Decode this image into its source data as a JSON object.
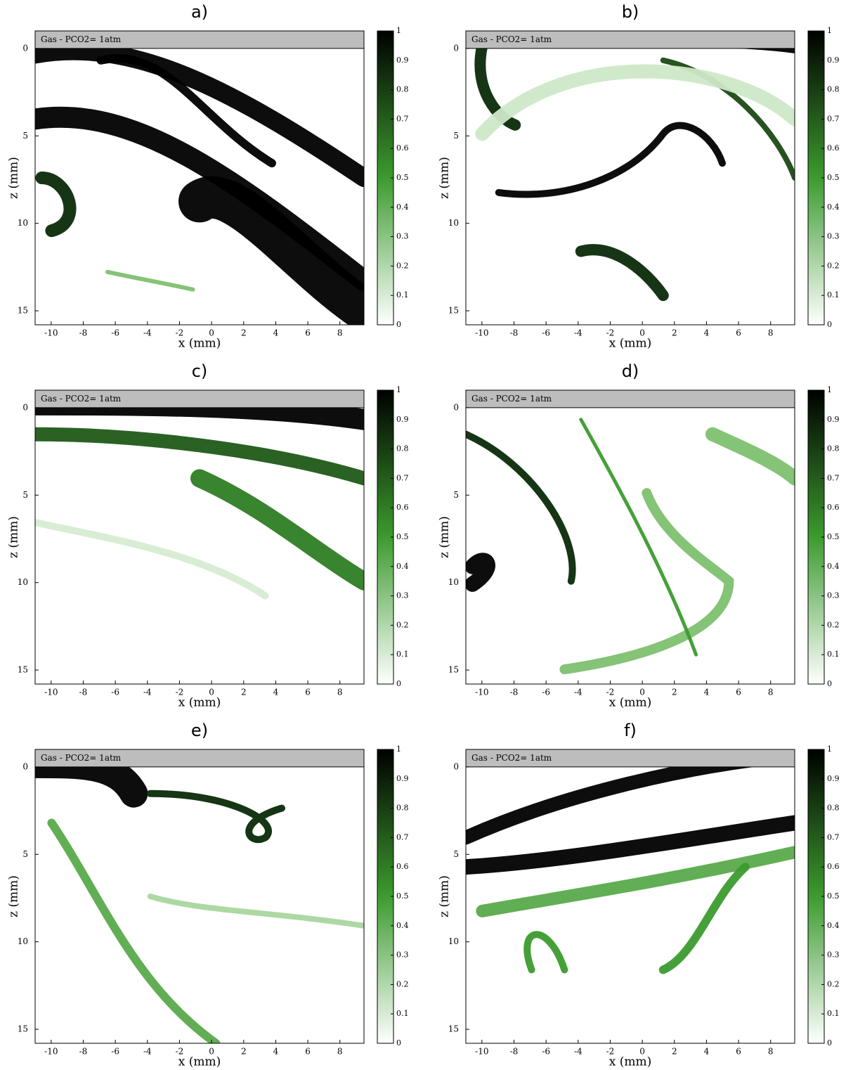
{
  "chart_data": [
    {
      "type": "heatmap",
      "title": "a)",
      "annotation": "Gas - PCO2= 1atm",
      "x_label": "x (mm)",
      "y_label": "z (mm)",
      "xlim": [
        -11,
        9.5
      ],
      "ylim": [
        -1,
        15.8
      ],
      "xticks": [
        -10,
        -8,
        -6,
        -4,
        -2,
        0,
        2,
        4,
        6,
        8
      ],
      "yticks": [
        0,
        5,
        10,
        15
      ],
      "colormap": [
        "#ffffff",
        "#3c9b2e",
        "#000000"
      ],
      "clim": [
        0,
        1
      ],
      "cticks": [
        0,
        0.1,
        0.2,
        0.3,
        0.4,
        0.5,
        0.6,
        0.7,
        0.8,
        0.9,
        1
      ]
    },
    {
      "type": "heatmap",
      "title": "b)",
      "annotation": "Gas - PCO2= 1atm",
      "x_label": "x (mm)",
      "y_label": "z (mm)",
      "xlim": [
        -11,
        9.5
      ],
      "ylim": [
        -1,
        15.8
      ],
      "xticks": [
        -10,
        -8,
        -6,
        -4,
        -2,
        0,
        2,
        4,
        6,
        8
      ],
      "yticks": [
        0,
        5,
        10,
        15
      ],
      "colormap": [
        "#ffffff",
        "#3c9b2e",
        "#000000"
      ],
      "clim": [
        0,
        1
      ],
      "cticks": [
        0,
        0.1,
        0.2,
        0.3,
        0.4,
        0.5,
        0.6,
        0.7,
        0.8,
        0.9,
        1
      ]
    },
    {
      "type": "heatmap",
      "title": "c)",
      "annotation": "Gas - PCO2= 1atm",
      "x_label": "x (mm)",
      "y_label": "z (mm)",
      "xlim": [
        -11,
        9.5
      ],
      "ylim": [
        -1,
        15.8
      ],
      "xticks": [
        -10,
        -8,
        -6,
        -4,
        -2,
        0,
        2,
        4,
        6,
        8
      ],
      "yticks": [
        0,
        5,
        10,
        15
      ],
      "colormap": [
        "#ffffff",
        "#3c9b2e",
        "#000000"
      ],
      "clim": [
        0,
        1
      ],
      "cticks": [
        0,
        0.1,
        0.2,
        0.3,
        0.4,
        0.5,
        0.6,
        0.7,
        0.8,
        0.9,
        1
      ]
    },
    {
      "type": "heatmap",
      "title": "d)",
      "annotation": "Gas - PCO2= 1atm",
      "x_label": "x (mm)",
      "y_label": "z (mm)",
      "xlim": [
        -11,
        9.5
      ],
      "ylim": [
        -1,
        15.8
      ],
      "xticks": [
        -10,
        -8,
        -6,
        -4,
        -2,
        0,
        2,
        4,
        6,
        8
      ],
      "yticks": [
        0,
        5,
        10,
        15
      ],
      "colormap": [
        "#ffffff",
        "#3c9b2e",
        "#000000"
      ],
      "clim": [
        0,
        1
      ],
      "cticks": [
        0,
        0.1,
        0.2,
        0.3,
        0.4,
        0.5,
        0.6,
        0.7,
        0.8,
        0.9,
        1
      ]
    },
    {
      "type": "heatmap",
      "title": "e)",
      "annotation": "Gas - PCO2= 1atm",
      "x_label": "x (mm)",
      "y_label": "z (mm)",
      "xlim": [
        -11,
        9.5
      ],
      "ylim": [
        -1,
        15.8
      ],
      "xticks": [
        -10,
        -8,
        -6,
        -4,
        -2,
        0,
        2,
        4,
        6,
        8
      ],
      "yticks": [
        0,
        5,
        10,
        15
      ],
      "colormap": [
        "#ffffff",
        "#3c9b2e",
        "#000000"
      ],
      "clim": [
        0,
        1
      ],
      "cticks": [
        0,
        0.1,
        0.2,
        0.3,
        0.4,
        0.5,
        0.6,
        0.7,
        0.8,
        0.9,
        1
      ]
    },
    {
      "type": "heatmap",
      "title": "f)",
      "annotation": "Gas - PCO2= 1atm",
      "x_label": "x (mm)",
      "y_label": "z (mm)",
      "xlim": [
        -11,
        9.5
      ],
      "ylim": [
        -1,
        15.8
      ],
      "xticks": [
        -10,
        -8,
        -6,
        -4,
        -2,
        0,
        2,
        4,
        6,
        8
      ],
      "yticks": [
        0,
        5,
        10,
        15
      ],
      "colormap": [
        "#ffffff",
        "#3c9b2e",
        "#000000"
      ],
      "clim": [
        0,
        1
      ],
      "cticks": [
        0,
        0.1,
        0.2,
        0.3,
        0.4,
        0.5,
        0.6,
        0.7,
        0.8,
        0.9,
        1
      ]
    }
  ]
}
